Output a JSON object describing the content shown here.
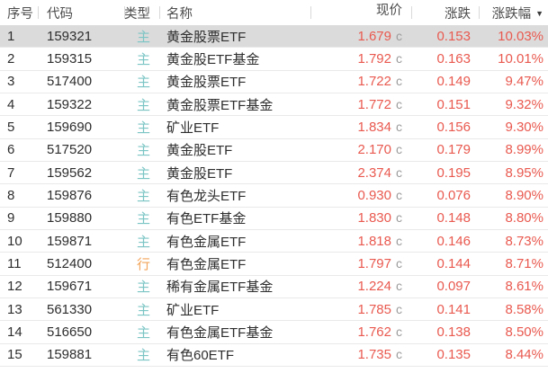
{
  "table": {
    "columns": {
      "index": {
        "label": "序号"
      },
      "code": {
        "label": "代码"
      },
      "type": {
        "label": "类型"
      },
      "name": {
        "label": "名称"
      },
      "price": {
        "label": "现价"
      },
      "change": {
        "label": "涨跌"
      },
      "pct": {
        "label": "涨跌幅"
      }
    },
    "sort": {
      "column": "pct",
      "direction": "desc",
      "icon": "▼"
    },
    "price_suffix": "c",
    "rows": [
      {
        "index": "1",
        "code": "159321",
        "type": "主",
        "type_variant": "main",
        "name": "黄金股票ETF",
        "price": "1.679",
        "change": "0.153",
        "pct": "10.03%",
        "selected": true
      },
      {
        "index": "2",
        "code": "159315",
        "type": "主",
        "type_variant": "main",
        "name": "黄金股ETF基金",
        "price": "1.792",
        "change": "0.163",
        "pct": "10.01%",
        "selected": false
      },
      {
        "index": "3",
        "code": "517400",
        "type": "主",
        "type_variant": "main",
        "name": "黄金股票ETF",
        "price": "1.722",
        "change": "0.149",
        "pct": "9.47%",
        "selected": false
      },
      {
        "index": "4",
        "code": "159322",
        "type": "主",
        "type_variant": "main",
        "name": "黄金股票ETF基金",
        "price": "1.772",
        "change": "0.151",
        "pct": "9.32%",
        "selected": false
      },
      {
        "index": "5",
        "code": "159690",
        "type": "主",
        "type_variant": "main",
        "name": "矿业ETF",
        "price": "1.834",
        "change": "0.156",
        "pct": "9.30%",
        "selected": false
      },
      {
        "index": "6",
        "code": "517520",
        "type": "主",
        "type_variant": "main",
        "name": "黄金股ETF",
        "price": "2.170",
        "change": "0.179",
        "pct": "8.99%",
        "selected": false
      },
      {
        "index": "7",
        "code": "159562",
        "type": "主",
        "type_variant": "main",
        "name": "黄金股ETF",
        "price": "2.374",
        "change": "0.195",
        "pct": "8.95%",
        "selected": false
      },
      {
        "index": "8",
        "code": "159876",
        "type": "主",
        "type_variant": "main",
        "name": "有色龙头ETF",
        "price": "0.930",
        "change": "0.076",
        "pct": "8.90%",
        "selected": false
      },
      {
        "index": "9",
        "code": "159880",
        "type": "主",
        "type_variant": "main",
        "name": "有色ETF基金",
        "price": "1.830",
        "change": "0.148",
        "pct": "8.80%",
        "selected": false
      },
      {
        "index": "10",
        "code": "159871",
        "type": "主",
        "type_variant": "main",
        "name": "有色金属ETF",
        "price": "1.818",
        "change": "0.146",
        "pct": "8.73%",
        "selected": false
      },
      {
        "index": "11",
        "code": "512400",
        "type": "行",
        "type_variant": "alt",
        "name": "有色金属ETF",
        "price": "1.797",
        "change": "0.144",
        "pct": "8.71%",
        "selected": false
      },
      {
        "index": "12",
        "code": "159671",
        "type": "主",
        "type_variant": "main",
        "name": "稀有金属ETF基金",
        "price": "1.224",
        "change": "0.097",
        "pct": "8.61%",
        "selected": false
      },
      {
        "index": "13",
        "code": "561330",
        "type": "主",
        "type_variant": "main",
        "name": "矿业ETF",
        "price": "1.785",
        "change": "0.141",
        "pct": "8.58%",
        "selected": false
      },
      {
        "index": "14",
        "code": "516650",
        "type": "主",
        "type_variant": "main",
        "name": "有色金属ETF基金",
        "price": "1.762",
        "change": "0.138",
        "pct": "8.50%",
        "selected": false
      },
      {
        "index": "15",
        "code": "159881",
        "type": "主",
        "type_variant": "main",
        "name": "有色60ETF",
        "price": "1.735",
        "change": "0.135",
        "pct": "8.44%",
        "selected": false
      }
    ]
  },
  "colors": {
    "up_red": "#e9594f",
    "type_main_teal": "#7cc5c5",
    "type_alt_orange": "#f3a45a",
    "selected_row_bg": "#dbdbdb",
    "suffix_gray": "#9c9c9c"
  }
}
